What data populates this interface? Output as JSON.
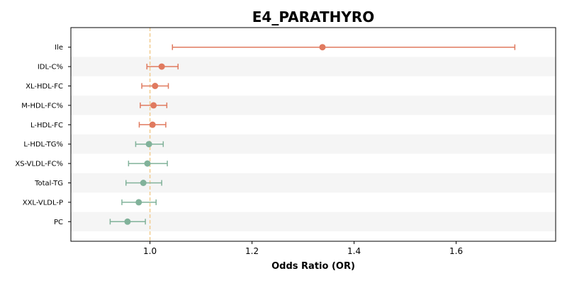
{
  "chart_data": {
    "type": "forest",
    "title": "E4_PARATHYRO",
    "xlabel": "Odds Ratio (OR)",
    "ylabel": "",
    "xlim": [
      0.845,
      1.795
    ],
    "xticks": [
      "1.0",
      "1.2",
      "1.4",
      "1.6"
    ],
    "xtick_values": [
      1.0,
      1.2,
      1.4,
      1.6
    ],
    "reference_line": 1.0,
    "grid": false,
    "row_banding": true,
    "colors": {
      "positive": "#E07A5F",
      "negative": "#81B29A",
      "reference": "#F2CC8F",
      "band": "#F5F5F5"
    },
    "rows": [
      {
        "label": "Ile",
        "or": 1.338,
        "ci_low": 1.044,
        "ci_high": 1.715,
        "group": "positive"
      },
      {
        "label": "IDL-C%",
        "or": 1.023,
        "ci_low": 0.994,
        "ci_high": 1.055,
        "group": "positive"
      },
      {
        "label": "XL-HDL-FC",
        "or": 1.01,
        "ci_low": 0.984,
        "ci_high": 1.036,
        "group": "positive"
      },
      {
        "label": "M-HDL-FC%",
        "or": 1.007,
        "ci_low": 0.981,
        "ci_high": 1.033,
        "group": "positive"
      },
      {
        "label": "L-HDL-FC",
        "or": 1.005,
        "ci_low": 0.979,
        "ci_high": 1.031,
        "group": "positive"
      },
      {
        "label": "L-HDL-TG%",
        "or": 0.998,
        "ci_low": 0.972,
        "ci_high": 1.026,
        "group": "negative"
      },
      {
        "label": "XS-VLDL-FC%",
        "or": 0.995,
        "ci_low": 0.958,
        "ci_high": 1.034,
        "group": "negative"
      },
      {
        "label": "Total-TG",
        "or": 0.987,
        "ci_low": 0.953,
        "ci_high": 1.023,
        "group": "negative"
      },
      {
        "label": "XXL-VLDL-P",
        "or": 0.978,
        "ci_low": 0.945,
        "ci_high": 1.012,
        "group": "negative"
      },
      {
        "label": "PC",
        "or": 0.956,
        "ci_low": 0.922,
        "ci_high": 0.991,
        "group": "negative"
      }
    ]
  }
}
